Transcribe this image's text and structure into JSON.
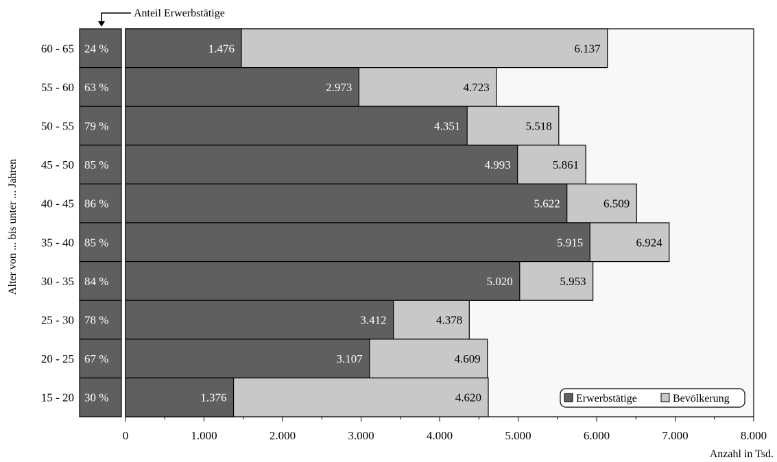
{
  "chart_data": {
    "type": "bar",
    "orientation": "horizontal",
    "title": "",
    "xlabel": "Anzahl in Tsd.",
    "ylabel": "Alter von ... bis unter ... Jahren",
    "xlim": [
      0,
      8000
    ],
    "x_ticks": [
      {
        "value": 0,
        "label": "0"
      },
      {
        "value": 1000,
        "label": "1.000"
      },
      {
        "value": 2000,
        "label": "2.000"
      },
      {
        "value": 3000,
        "label": "3.000"
      },
      {
        "value": 4000,
        "label": "4.000"
      },
      {
        "value": 5000,
        "label": "5.000"
      },
      {
        "value": 6000,
        "label": "6.000"
      },
      {
        "value": 7000,
        "label": "7.000"
      },
      {
        "value": 8000,
        "label": "8.000"
      }
    ],
    "categories": [
      "60 - 65",
      "55 - 60",
      "50 - 55",
      "45 - 50",
      "40 - 45",
      "35 - 40",
      "30 - 35",
      "25 - 30",
      "20 - 25",
      "15 - 20"
    ],
    "series": [
      {
        "name": "Erwerbstätige",
        "color": "#5f5f5f",
        "values": [
          1476,
          2973,
          4351,
          4993,
          5622,
          5915,
          5020,
          3412,
          3107,
          1376
        ],
        "labels": [
          "1.476",
          "2.973",
          "4.351",
          "4.993",
          "5.622",
          "5.915",
          "5.020",
          "3.412",
          "3.107",
          "1.376"
        ]
      },
      {
        "name": "Bevölkerung",
        "color": "#c8c8c8",
        "values": [
          6137,
          4723,
          5518,
          5861,
          6509,
          6924,
          5953,
          4378,
          4609,
          4620
        ],
        "labels": [
          "6.137",
          "4.723",
          "5.518",
          "5.861",
          "6.509",
          "6.924",
          "5.953",
          "4.378",
          "4.609",
          "4.620"
        ]
      }
    ],
    "share": {
      "name": "Anteil Erwerbstätige",
      "labels": [
        "24 %",
        "63 %",
        "79 %",
        "85 %",
        "86 %",
        "85 %",
        "84 %",
        "78 %",
        "67 %",
        "30 %"
      ]
    },
    "legend_position": "bottom-right",
    "plot_background": "#f8f8f8",
    "grid": false
  }
}
